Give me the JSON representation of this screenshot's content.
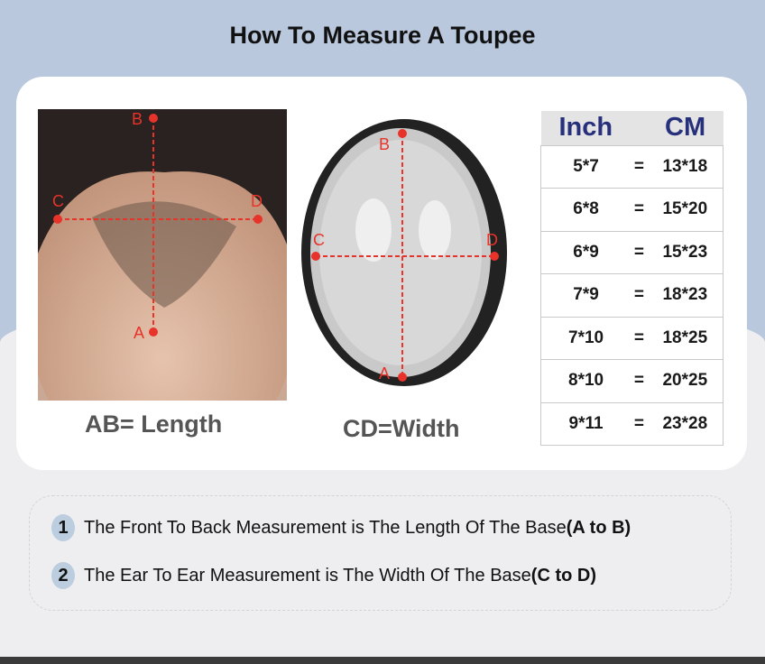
{
  "title": "How To Measure A Toupee",
  "left_image": {
    "caption": "AB= Length",
    "labels": {
      "a": "A",
      "b": "B",
      "c": "C",
      "d": "D"
    }
  },
  "right_image": {
    "caption": "CD=Width",
    "labels": {
      "a": "A",
      "b": "B",
      "c": "C",
      "d": "D"
    }
  },
  "size_table": {
    "headers": [
      "Inch",
      "CM"
    ],
    "equals": "=",
    "rows": [
      {
        "inch": "5*7",
        "cm": "13*18"
      },
      {
        "inch": "6*8",
        "cm": "15*20"
      },
      {
        "inch": "6*9",
        "cm": "15*23"
      },
      {
        "inch": "7*9",
        "cm": "18*23"
      },
      {
        "inch": "7*10",
        "cm": "18*25"
      },
      {
        "inch": "8*10",
        "cm": "20*25"
      },
      {
        "inch": "9*11",
        "cm": "23*28"
      }
    ]
  },
  "notes": [
    {
      "number": "1",
      "text": "The Front To Back Measurement is The Length Of The Base",
      "bold": "(A to B)"
    },
    {
      "number": "2",
      "text": "The Ear To Ear Measurement is The Width Of The Base",
      "bold": "(C to D)"
    }
  ],
  "colors": {
    "accent_blue": "#b9c8dc",
    "header_text": "#27307a",
    "marker_red": "#e8332a"
  }
}
